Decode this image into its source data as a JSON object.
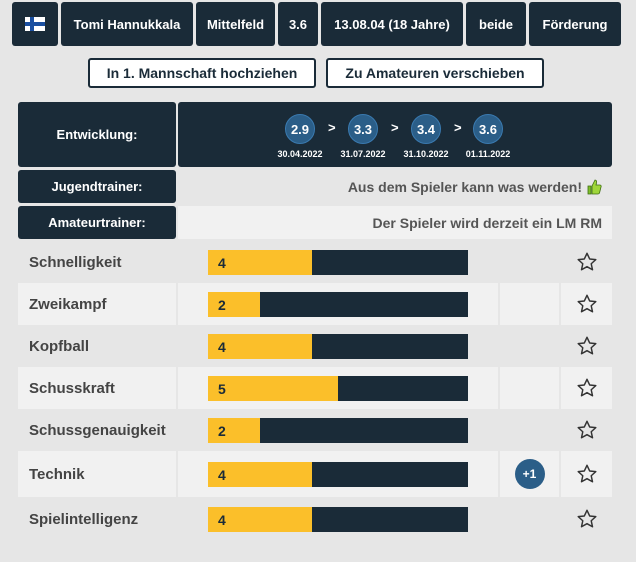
{
  "header": {
    "flag": "finland-flag-icon",
    "name": "Tomi Hannukkala",
    "position": "Mittelfeld",
    "rating": "3.6",
    "birth": "13.08.04 (18 Jahre)",
    "foot": "beide",
    "status": "Förderung"
  },
  "actions": {
    "promote": "In 1. Mannschaft hochziehen",
    "move": "Zu Amateuren verschieben"
  },
  "development": {
    "label": "Entwicklung:",
    "steps": [
      {
        "value": "2.9",
        "date": "30.04.2022"
      },
      {
        "value": "3.3",
        "date": "31.07.2022"
      },
      {
        "value": "3.4",
        "date": "31.10.2022"
      },
      {
        "value": "3.6",
        "date": "01.11.2022"
      }
    ],
    "separator": ">"
  },
  "youth_trainer": {
    "label": "Jugendtrainer:",
    "comment": "Aus dem Spieler kann was werden!",
    "icon": "thumbs-up-icon"
  },
  "amateur_trainer": {
    "label": "Amateurtrainer:",
    "comment": "Der Spieler wird derzeit ein LM RM"
  },
  "max_skill": 10,
  "skills": [
    {
      "name": "Schnelligkeit",
      "value": "4",
      "bonus": ""
    },
    {
      "name": "Zweikampf",
      "value": "2",
      "bonus": ""
    },
    {
      "name": "Kopfball",
      "value": "4",
      "bonus": ""
    },
    {
      "name": "Schusskraft",
      "value": "5",
      "bonus": ""
    },
    {
      "name": "Schussgenauigkeit",
      "value": "2",
      "bonus": ""
    },
    {
      "name": "Technik",
      "value": "4",
      "bonus": "+1"
    },
    {
      "name": "Spielintelligenz",
      "value": "4",
      "bonus": ""
    }
  ],
  "colors": {
    "dark": "#1a2b38",
    "accent": "#fbbf2a",
    "circle": "#2b5e88"
  }
}
